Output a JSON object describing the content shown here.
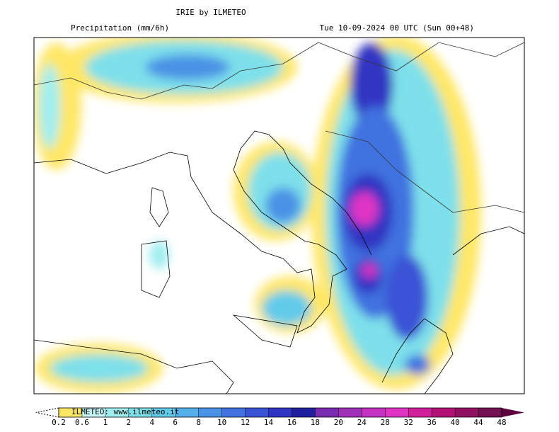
{
  "header": {
    "title": "IRIE by ILMETEO",
    "variable": "Precipitation (mm/6h)",
    "valid_time": "Tue 10-09-2024 00 UTC (Sun 00+48)"
  },
  "colorbar": {
    "credit": "ILMETEO: www.ilmeteo.it",
    "labels": [
      0.2,
      0.6,
      1,
      2,
      4,
      6,
      8,
      10,
      12,
      14,
      16,
      18,
      20,
      24,
      28,
      32,
      36,
      40,
      44,
      48
    ],
    "colors": [
      "#ffe766",
      "#c8fafa",
      "#a0eef0",
      "#7ee0ea",
      "#62cbea",
      "#55b0ea",
      "#4a92e6",
      "#4172e0",
      "#3a52d6",
      "#3034c2",
      "#20209e",
      "#7a2cb0",
      "#a030b8",
      "#c432c2",
      "#e034c4",
      "#d0209a",
      "#b21276",
      "#921062",
      "#731050"
    ],
    "over_color": "#5e0040"
  }
}
